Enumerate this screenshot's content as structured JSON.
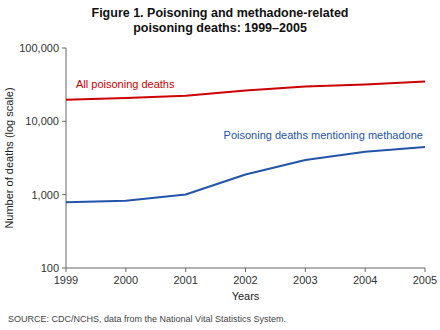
{
  "chart_data": {
    "type": "line",
    "title": "Figure 1. Poisoning and methadone-related\npoisoning deaths: 1999–2005",
    "x_label": "Years",
    "y_label": "Number of deaths (log scale)",
    "x": [
      1999,
      2000,
      2001,
      2002,
      2003,
      2004,
      2005
    ],
    "series": [
      {
        "name": "All poisoning deaths",
        "color": "#cc0000",
        "values": [
          19741,
          20732,
          22242,
          26256,
          29927,
          31872,
          34994
        ]
      },
      {
        "name": "Poisoning deaths mentioning methadone",
        "color": "#2255aa",
        "values": [
          786,
          825,
          1007,
          1885,
          2973,
          3849,
          4462
        ]
      }
    ],
    "log": "y",
    "xlim": [
      1999,
      2005
    ],
    "xticks": [
      1999,
      2000,
      2001,
      2002,
      2003,
      2004,
      2005
    ],
    "ylim": [
      100,
      100000
    ],
    "yticks": [
      100,
      {
        "value": 1000,
        "label": "1,000"
      },
      {
        "value": 10000,
        "label": "10,000"
      },
      {
        "value": 100000,
        "label": "100,000"
      }
    ],
    "grid": false,
    "annotations": [
      "SOURCE: CDC/NCHS, data from the National Vital Statistics System."
    ]
  }
}
